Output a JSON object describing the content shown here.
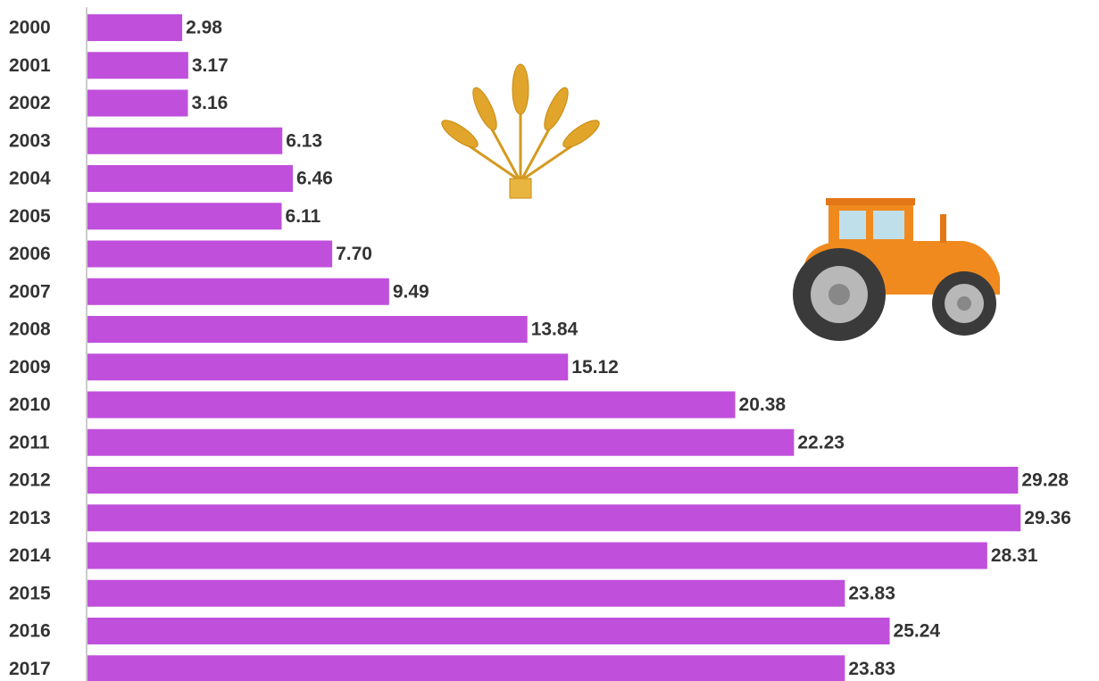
{
  "chart_data": {
    "type": "bar",
    "orientation": "horizontal",
    "categories": [
      "2000",
      "2001",
      "2002",
      "2003",
      "2004",
      "2005",
      "2006",
      "2007",
      "2008",
      "2009",
      "2010",
      "2011",
      "2012",
      "2013",
      "2014",
      "2015",
      "2016",
      "2017"
    ],
    "values": [
      2.98,
      3.17,
      3.16,
      6.13,
      6.46,
      6.11,
      7.7,
      9.49,
      13.84,
      15.12,
      20.38,
      22.23,
      29.28,
      29.36,
      28.31,
      23.83,
      25.24,
      23.83
    ],
    "value_labels": [
      "2.98",
      "3.17",
      "3.16",
      "6.13",
      "6.46",
      "6.11",
      "7.70",
      "9.49",
      "13.84",
      "15.12",
      "20.38",
      "22.23",
      "29.28",
      "29.36",
      "28.31",
      "23.83",
      "25.24",
      "23.83"
    ],
    "color": "#c050dc"
  }
}
